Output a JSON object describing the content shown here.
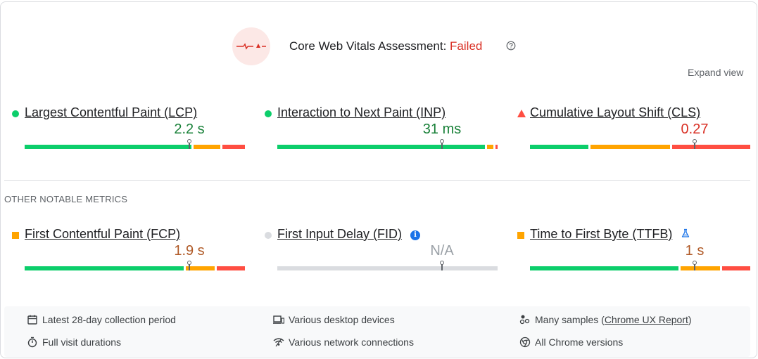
{
  "assessment": {
    "title": "Core Web Vitals Assessment:",
    "status": "Failed",
    "expand_label": "Expand view"
  },
  "core_metrics": [
    {
      "name": "Largest Contentful Paint (LCP)",
      "value": "2.2 s",
      "rating": "good",
      "marker_fraction": 0.75
    },
    {
      "name": "Interaction to Next Paint (INP)",
      "value": "31 ms",
      "rating": "good",
      "marker_fraction": 0.75
    },
    {
      "name": "Cumulative Layout Shift (CLS)",
      "value": "0.27",
      "rating": "poor",
      "marker_fraction": 0.75
    }
  ],
  "other_section_label": "OTHER NOTABLE METRICS",
  "other_metrics": [
    {
      "name": "First Contentful Paint (FCP)",
      "value": "1.9 s",
      "rating": "average",
      "marker_fraction": 0.75
    },
    {
      "name": "First Input Delay (FID)",
      "value": "N/A",
      "rating": "na",
      "marker_fraction": 0.75
    },
    {
      "name": "Time to First Byte (TTFB)",
      "value": "1 s",
      "rating": "average",
      "marker_fraction": 0.75
    }
  ],
  "distributions": {
    "lcp": {
      "good": 0.75,
      "average": 0.12,
      "poor": 0.1
    },
    "inp": {
      "good": 0.95,
      "average": 0.03,
      "poor": 0.01
    },
    "cls": {
      "good": 0.27,
      "average": 0.37,
      "poor": 0.36
    },
    "fcp": {
      "good": 0.73,
      "average": 0.13,
      "poor": 0.13
    },
    "fid": {
      "good": 0,
      "average": 0,
      "poor": 0
    },
    "ttfb": {
      "good": 0.68,
      "average": 0.18,
      "poor": 0.13
    }
  },
  "footer": {
    "collection_period": "Latest 28-day collection period",
    "devices": "Various desktop devices",
    "samples_prefix": "Many samples (",
    "samples_link": "Chrome UX Report",
    "samples_suffix": ")",
    "visit_durations": "Full visit durations",
    "network": "Various network connections",
    "chrome_versions": "All Chrome versions"
  },
  "colors": {
    "good": "#0cce6b",
    "average": "#ffa400",
    "poor": "#ff4e42",
    "failed_text": "#d93025",
    "na": "#dadce0"
  },
  "icons": {
    "assessment": "failed-vitals-icon",
    "help": "help-circle-icon",
    "fid_info": "info-icon",
    "ttfb_lab": "lab-flask-icon",
    "calendar": "calendar-icon",
    "devices": "devices-icon",
    "samples": "samples-icon",
    "timer": "timer-icon",
    "network": "network-icon",
    "chrome": "chrome-icon"
  }
}
